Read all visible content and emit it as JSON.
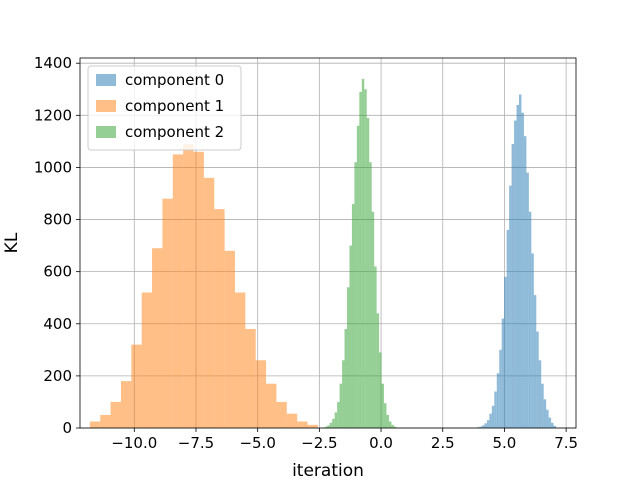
{
  "chart_data": {
    "type": "histogram",
    "title": "",
    "xlabel": "iteration",
    "ylabel": "KL",
    "xlim": [
      -12.2,
      7.9
    ],
    "ylim": [
      0,
      1420
    ],
    "xticks": [
      -10.0,
      -7.5,
      -5.0,
      -2.5,
      0.0,
      2.5,
      5.0,
      7.5
    ],
    "xtick_labels": [
      "−10.0",
      "−7.5",
      "−5.0",
      "−2.5",
      "0.0",
      "2.5",
      "5.0",
      "7.5"
    ],
    "yticks": [
      0,
      200,
      400,
      600,
      800,
      1000,
      1200,
      1400
    ],
    "ytick_labels": [
      "0",
      "200",
      "400",
      "600",
      "800",
      "1000",
      "1200",
      "1400"
    ],
    "grid": true,
    "legend_position": "top-left",
    "series": [
      {
        "name": "component 0",
        "color": "#1f77b4",
        "opacity": 0.5,
        "bin_start": 3.89,
        "bin_width": 0.1,
        "counts": [
          3,
          5,
          10,
          18,
          30,
          55,
          85,
          140,
          210,
          300,
          420,
          580,
          760,
          930,
          1090,
          1180,
          1240,
          1280,
          1210,
          1120,
          980,
          830,
          670,
          510,
          370,
          260,
          170,
          110,
          70,
          40,
          20,
          8
        ]
      },
      {
        "name": "component 1",
        "color": "#ff7f0e",
        "opacity": 0.5,
        "bin_start": -11.8,
        "bin_width": 0.42,
        "counts": [
          25,
          50,
          100,
          180,
          320,
          520,
          690,
          880,
          1050,
          1090,
          1060,
          960,
          840,
          680,
          520,
          380,
          260,
          170,
          100,
          55,
          25,
          12
        ]
      },
      {
        "name": "component 2",
        "color": "#2ca02c",
        "opacity": 0.5,
        "bin_start": -2.28,
        "bin_width": 0.1,
        "counts": [
          5,
          10,
          20,
          35,
          60,
          100,
          170,
          260,
          380,
          540,
          700,
          860,
          1020,
          1160,
          1290,
          1340,
          1300,
          1190,
          1020,
          830,
          620,
          440,
          290,
          170,
          95,
          50,
          25,
          12,
          5
        ]
      }
    ]
  }
}
